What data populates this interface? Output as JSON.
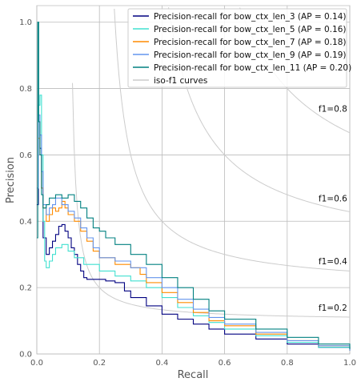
{
  "chart_data": {
    "type": "line",
    "title": "",
    "xlabel": "Recall",
    "ylabel": "Precision",
    "xlim": [
      0.0,
      1.0
    ],
    "ylim": [
      0.0,
      1.05
    ],
    "xticks": [
      "0.0",
      "0.2",
      "0.4",
      "0.6",
      "0.8",
      "1.0"
    ],
    "yticks": [
      "0.0",
      "0.2",
      "0.4",
      "0.6",
      "0.8",
      "1.0"
    ],
    "grid": true,
    "legend_position": "top-right",
    "iso_f1": {
      "legend_label": "iso-f1 curves",
      "color": "#cccccc",
      "levels": [
        0.2,
        0.4,
        0.6,
        0.8
      ],
      "labels": [
        "f1=0.2",
        "f1=0.4",
        "f1=0.6",
        "f1=0.8"
      ],
      "label_points": [
        [
          0.9,
          0.14
        ],
        [
          0.9,
          0.28
        ],
        [
          0.9,
          0.47
        ],
        [
          0.9,
          0.74
        ]
      ]
    },
    "series": [
      {
        "name": "Precision-recall for bow_ctx_len_3 (AP = 0.14)",
        "color": "#000080",
        "points": [
          [
            0,
            0.45
          ],
          [
            0.005,
            0.7
          ],
          [
            0.01,
            0.62
          ],
          [
            0.015,
            0.5
          ],
          [
            0.02,
            0.35
          ],
          [
            0.03,
            0.3
          ],
          [
            0.04,
            0.32
          ],
          [
            0.05,
            0.34
          ],
          [
            0.06,
            0.36
          ],
          [
            0.07,
            0.385
          ],
          [
            0.08,
            0.39
          ],
          [
            0.09,
            0.37
          ],
          [
            0.1,
            0.35
          ],
          [
            0.11,
            0.32
          ],
          [
            0.12,
            0.3
          ],
          [
            0.13,
            0.27
          ],
          [
            0.14,
            0.25
          ],
          [
            0.15,
            0.23
          ],
          [
            0.16,
            0.225
          ],
          [
            0.2,
            0.225
          ],
          [
            0.22,
            0.22
          ],
          [
            0.25,
            0.215
          ],
          [
            0.28,
            0.19
          ],
          [
            0.3,
            0.17
          ],
          [
            0.35,
            0.145
          ],
          [
            0.4,
            0.12
          ],
          [
            0.45,
            0.105
          ],
          [
            0.5,
            0.09
          ],
          [
            0.55,
            0.075
          ],
          [
            0.6,
            0.06
          ],
          [
            0.7,
            0.045
          ],
          [
            0.8,
            0.03
          ],
          [
            0.9,
            0.02
          ],
          [
            1.0,
            0.01
          ]
        ]
      },
      {
        "name": "Precision-recall for bow_ctx_len_5 (AP = 0.16)",
        "color": "#40e0d0",
        "points": [
          [
            0,
            0.5
          ],
          [
            0.005,
            0.75
          ],
          [
            0.01,
            0.78
          ],
          [
            0.015,
            0.6
          ],
          [
            0.02,
            0.4
          ],
          [
            0.025,
            0.28
          ],
          [
            0.03,
            0.26
          ],
          [
            0.04,
            0.28
          ],
          [
            0.05,
            0.3
          ],
          [
            0.06,
            0.32
          ],
          [
            0.08,
            0.33
          ],
          [
            0.1,
            0.31
          ],
          [
            0.12,
            0.29
          ],
          [
            0.15,
            0.27
          ],
          [
            0.2,
            0.25
          ],
          [
            0.25,
            0.235
          ],
          [
            0.3,
            0.22
          ],
          [
            0.35,
            0.2
          ],
          [
            0.4,
            0.17
          ],
          [
            0.45,
            0.14
          ],
          [
            0.5,
            0.115
          ],
          [
            0.55,
            0.095
          ],
          [
            0.6,
            0.075
          ],
          [
            0.7,
            0.055
          ],
          [
            0.8,
            0.035
          ],
          [
            0.9,
            0.02
          ],
          [
            1.0,
            0.01
          ]
        ]
      },
      {
        "name": "Precision-recall for bow_ctx_len_7 (AP = 0.18)",
        "color": "#ff8c00",
        "points": [
          [
            0,
            0.5
          ],
          [
            0.005,
            0.65
          ],
          [
            0.01,
            0.6
          ],
          [
            0.015,
            0.5
          ],
          [
            0.02,
            0.44
          ],
          [
            0.03,
            0.4
          ],
          [
            0.04,
            0.42
          ],
          [
            0.05,
            0.44
          ],
          [
            0.06,
            0.43
          ],
          [
            0.07,
            0.44
          ],
          [
            0.08,
            0.46
          ],
          [
            0.09,
            0.44
          ],
          [
            0.1,
            0.42
          ],
          [
            0.12,
            0.4
          ],
          [
            0.14,
            0.37
          ],
          [
            0.16,
            0.34
          ],
          [
            0.18,
            0.31
          ],
          [
            0.2,
            0.29
          ],
          [
            0.25,
            0.27
          ],
          [
            0.3,
            0.26
          ],
          [
            0.33,
            0.24
          ],
          [
            0.35,
            0.215
          ],
          [
            0.4,
            0.185
          ],
          [
            0.45,
            0.155
          ],
          [
            0.5,
            0.125
          ],
          [
            0.55,
            0.1
          ],
          [
            0.6,
            0.085
          ],
          [
            0.7,
            0.06
          ],
          [
            0.8,
            0.04
          ],
          [
            0.9,
            0.025
          ],
          [
            1.0,
            0.01
          ]
        ]
      },
      {
        "name": "Precision-recall for bow_ctx_len_9 (AP = 0.19)",
        "color": "#6495ed",
        "points": [
          [
            0,
            0.5
          ],
          [
            0.005,
            0.72
          ],
          [
            0.01,
            0.66
          ],
          [
            0.015,
            0.55
          ],
          [
            0.02,
            0.45
          ],
          [
            0.03,
            0.42
          ],
          [
            0.04,
            0.44
          ],
          [
            0.05,
            0.45
          ],
          [
            0.06,
            0.47
          ],
          [
            0.08,
            0.45
          ],
          [
            0.1,
            0.43
          ],
          [
            0.12,
            0.41
          ],
          [
            0.14,
            0.38
          ],
          [
            0.16,
            0.35
          ],
          [
            0.18,
            0.32
          ],
          [
            0.2,
            0.29
          ],
          [
            0.25,
            0.28
          ],
          [
            0.3,
            0.26
          ],
          [
            0.35,
            0.23
          ],
          [
            0.4,
            0.2
          ],
          [
            0.45,
            0.165
          ],
          [
            0.5,
            0.135
          ],
          [
            0.55,
            0.11
          ],
          [
            0.6,
            0.09
          ],
          [
            0.7,
            0.065
          ],
          [
            0.8,
            0.04
          ],
          [
            0.9,
            0.025
          ],
          [
            1.0,
            0.01
          ]
        ]
      },
      {
        "name": "Precision-recall for bow_ctx_len_11 (AP = 0.20)",
        "color": "#008080",
        "points": [
          [
            0,
            0.35
          ],
          [
            0.003,
            1.0
          ],
          [
            0.006,
            0.7
          ],
          [
            0.01,
            0.6
          ],
          [
            0.015,
            0.48
          ],
          [
            0.02,
            0.44
          ],
          [
            0.03,
            0.45
          ],
          [
            0.04,
            0.47
          ],
          [
            0.06,
            0.48
          ],
          [
            0.08,
            0.47
          ],
          [
            0.1,
            0.48
          ],
          [
            0.12,
            0.46
          ],
          [
            0.14,
            0.44
          ],
          [
            0.16,
            0.41
          ],
          [
            0.18,
            0.38
          ],
          [
            0.2,
            0.37
          ],
          [
            0.22,
            0.35
          ],
          [
            0.25,
            0.33
          ],
          [
            0.3,
            0.3
          ],
          [
            0.35,
            0.27
          ],
          [
            0.4,
            0.23
          ],
          [
            0.45,
            0.2
          ],
          [
            0.5,
            0.165
          ],
          [
            0.55,
            0.13
          ],
          [
            0.6,
            0.105
          ],
          [
            0.7,
            0.075
          ],
          [
            0.8,
            0.05
          ],
          [
            0.9,
            0.03
          ],
          [
            1.0,
            0.015
          ]
        ]
      }
    ]
  }
}
